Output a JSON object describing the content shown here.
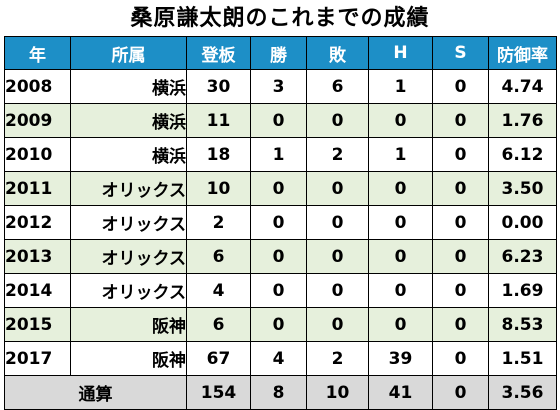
{
  "title": "桑原謙太朗のこれまでの成績",
  "table": {
    "headers": [
      "年",
      "所属",
      "登板",
      "勝",
      "敗",
      "H",
      "S",
      "防御率"
    ],
    "rows": [
      {
        "year": "2008",
        "team": "横浜",
        "games": "30",
        "wins": "3",
        "losses": "6",
        "holds": "1",
        "saves": "0",
        "era": "4.74"
      },
      {
        "year": "2009",
        "team": "横浜",
        "games": "11",
        "wins": "0",
        "losses": "0",
        "holds": "0",
        "saves": "0",
        "era": "1.76"
      },
      {
        "year": "2010",
        "team": "横浜",
        "games": "18",
        "wins": "1",
        "losses": "2",
        "holds": "1",
        "saves": "0",
        "era": "6.12"
      },
      {
        "year": "2011",
        "team": "オリックス",
        "games": "10",
        "wins": "0",
        "losses": "0",
        "holds": "0",
        "saves": "0",
        "era": "3.50"
      },
      {
        "year": "2012",
        "team": "オリックス",
        "games": "2",
        "wins": "0",
        "losses": "0",
        "holds": "0",
        "saves": "0",
        "era": "0.00"
      },
      {
        "year": "2013",
        "team": "オリックス",
        "games": "6",
        "wins": "0",
        "losses": "0",
        "holds": "0",
        "saves": "0",
        "era": "6.23"
      },
      {
        "year": "2014",
        "team": "オリックス",
        "games": "4",
        "wins": "0",
        "losses": "0",
        "holds": "0",
        "saves": "0",
        "era": "1.69"
      },
      {
        "year": "2015",
        "team": "阪神",
        "games": "6",
        "wins": "0",
        "losses": "0",
        "holds": "0",
        "saves": "0",
        "era": "8.53"
      },
      {
        "year": "2017",
        "team": "阪神",
        "games": "67",
        "wins": "4",
        "losses": "2",
        "holds": "39",
        "saves": "0",
        "era": "1.51"
      }
    ],
    "total": {
      "label": "通算",
      "games": "154",
      "wins": "8",
      "losses": "10",
      "holds": "41",
      "saves": "0",
      "era": "3.56"
    }
  },
  "colors": {
    "header_bg": "#1d8fc7",
    "header_text": "#ffffff",
    "alt_row_bg": "#e6f0dc",
    "total_row_bg": "#d9d9d9"
  }
}
